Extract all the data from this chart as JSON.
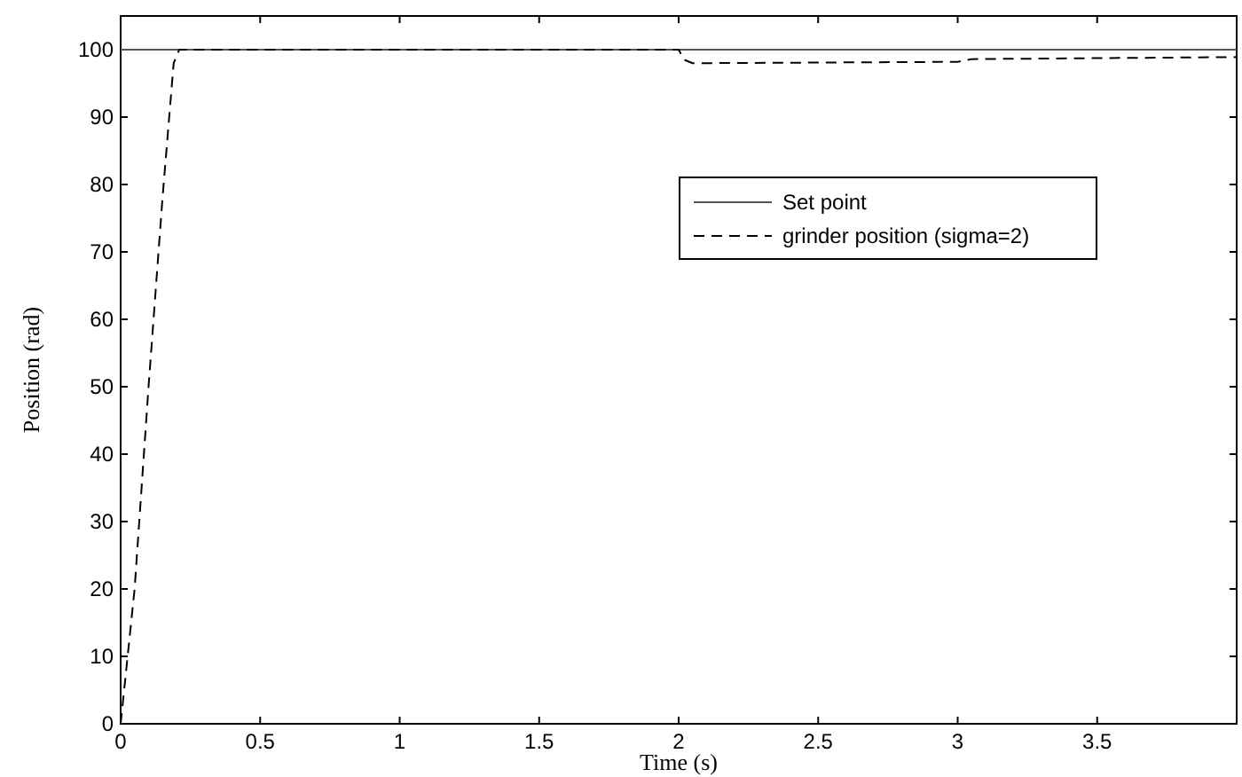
{
  "chart_data": {
    "type": "line",
    "xlabel": "Time (s)",
    "ylabel": "Position (rad)",
    "xlim": [
      0,
      4
    ],
    "ylim": [
      0,
      105
    ],
    "xticks": [
      0,
      0.5,
      1,
      1.5,
      2,
      2.5,
      3,
      3.5
    ],
    "yticks": [
      0,
      10,
      20,
      30,
      40,
      50,
      60,
      70,
      80,
      90,
      100
    ],
    "grid": false,
    "legend": "right",
    "series": [
      {
        "name": "Set point",
        "color": "#555555",
        "line_style": "solid",
        "x": [
          0,
          4
        ],
        "values": [
          100,
          100
        ]
      },
      {
        "name": "grinder position (sigma=2)",
        "color": "#000000",
        "line_style": "dashed",
        "x": [
          0,
          0.02,
          0.05,
          0.1,
          0.15,
          0.19,
          0.21,
          2.0,
          2.02,
          2.05,
          2.1,
          3.0,
          3.05,
          4
        ],
        "values": [
          0,
          8,
          20,
          50,
          78,
          98,
          100,
          100,
          98.5,
          98,
          98,
          98.2,
          98.6,
          98.9
        ]
      }
    ]
  }
}
